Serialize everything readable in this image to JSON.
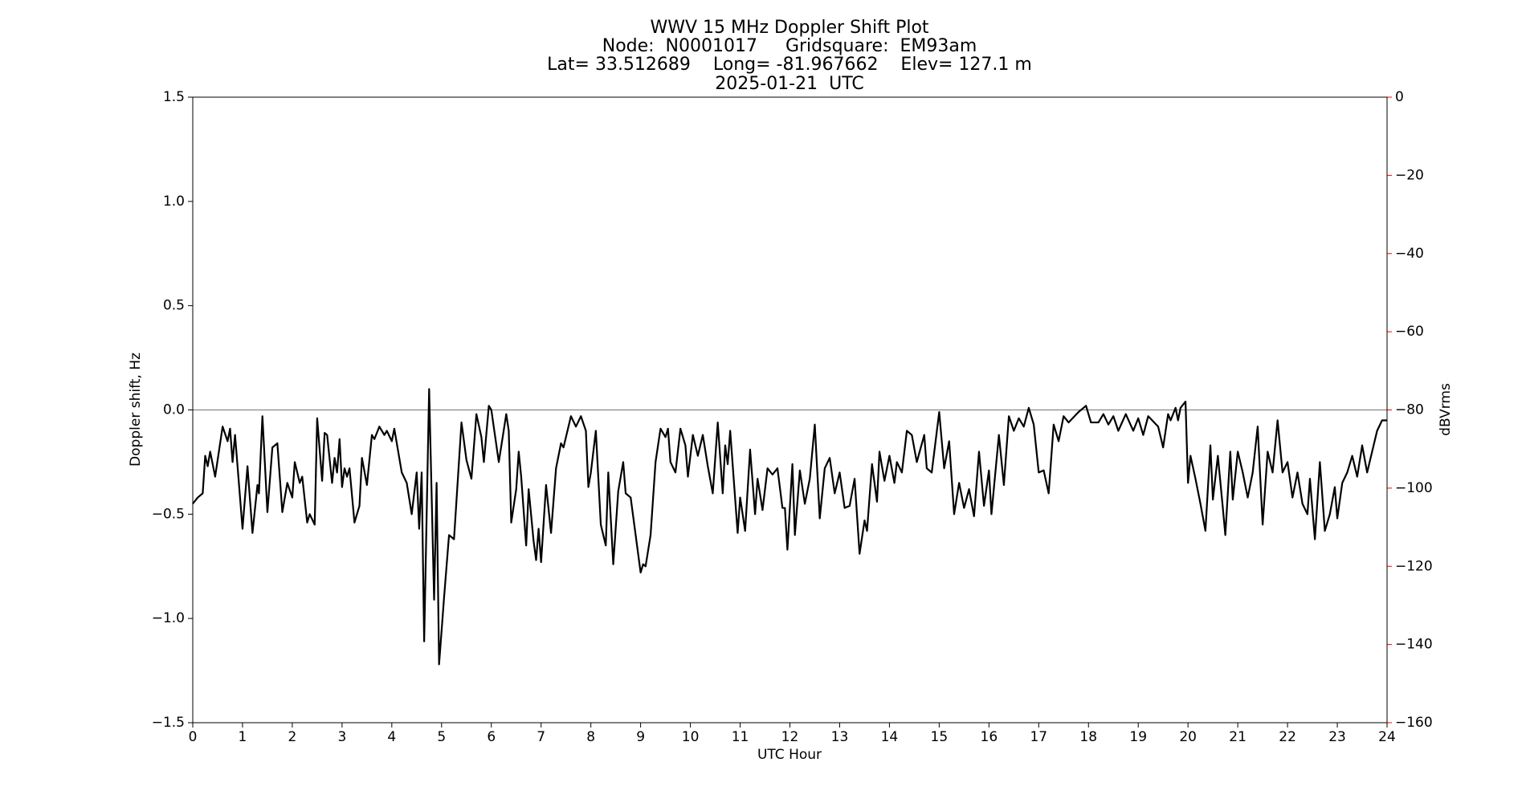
{
  "chart_data": {
    "type": "line",
    "title": "WWV 15 MHz Doppler Shift Plot",
    "subtitle_lines": [
      "Node:  N0001017     Gridsquare:  EM93am",
      "Lat= 33.512689    Long= -81.967662    Elev= 127.1 m",
      "2025-01-21  UTC"
    ],
    "x_label": "UTC Hour",
    "y_label": "Doppler shift, Hz",
    "y2_label": "dBVrms",
    "color": "#000000",
    "y2_color": "#ff0000",
    "reference_line": 0,
    "reference_line_color": "#888888",
    "xlim": [
      0,
      24
    ],
    "xticks": [
      0,
      1,
      2,
      3,
      4,
      5,
      6,
      7,
      8,
      9,
      10,
      11,
      12,
      13,
      14,
      15,
      16,
      17,
      18,
      19,
      20,
      21,
      22,
      23,
      24
    ],
    "ylim": [
      -1.5,
      1.5
    ],
    "yticks": [
      {
        "value": -1.5,
        "label": "−1.5"
      },
      {
        "value": -1,
        "label": "−1.0"
      },
      {
        "value": -0.5,
        "label": "−0.5"
      },
      {
        "value": 0,
        "label": "0.0"
      },
      {
        "value": 0.5,
        "label": "0.5"
      },
      {
        "value": 1,
        "label": "1.0"
      },
      {
        "value": 1.5,
        "label": "1.5"
      }
    ],
    "y2lim": [
      -160,
      0
    ],
    "y2ticks": [
      {
        "value": -160,
        "label": "−160"
      },
      {
        "value": -140,
        "label": "−140"
      },
      {
        "value": -120,
        "label": "−120"
      },
      {
        "value": -100,
        "label": "−100"
      },
      {
        "value": -80,
        "label": "−80"
      },
      {
        "value": -60,
        "label": "−60"
      },
      {
        "value": -40,
        "label": "−40"
      },
      {
        "value": -20,
        "label": "−20"
      },
      0
    ],
    "x": [
      0,
      0.1,
      0.2,
      0.25,
      0.3,
      0.35,
      0.45,
      0.6,
      0.7,
      0.75,
      0.8,
      0.85,
      1,
      1.1,
      1.2,
      1.3,
      1.33,
      1.4,
      1.5,
      1.6,
      1.7,
      1.8,
      1.9,
      2,
      2.05,
      2.15,
      2.2,
      2.3,
      2.35,
      2.45,
      2.5,
      2.6,
      2.65,
      2.7,
      2.8,
      2.85,
      2.9,
      2.95,
      3,
      3.05,
      3.1,
      3.15,
      3.25,
      3.35,
      3.4,
      3.5,
      3.6,
      3.65,
      3.75,
      3.85,
      3.9,
      4,
      4.05,
      4.2,
      4.3,
      4.4,
      4.5,
      4.55,
      4.6,
      4.65,
      4.75,
      4.85,
      4.9,
      4.95,
      5.05,
      5.15,
      5.25,
      5.4,
      5.5,
      5.6,
      5.7,
      5.8,
      5.85,
      5.95,
      6,
      6.15,
      6.3,
      6.35,
      6.4,
      6.5,
      6.55,
      6.6,
      6.7,
      6.75,
      6.85,
      6.9,
      6.95,
      7,
      7.1,
      7.2,
      7.3,
      7.4,
      7.45,
      7.6,
      7.7,
      7.8,
      7.9,
      7.95,
      8,
      8.1,
      8.2,
      8.3,
      8.35,
      8.45,
      8.55,
      8.65,
      8.7,
      8.8,
      8.9,
      9,
      9.05,
      9.1,
      9.2,
      9.3,
      9.4,
      9.5,
      9.55,
      9.6,
      9.7,
      9.8,
      9.9,
      9.95,
      10.05,
      10.15,
      10.25,
      10.35,
      10.45,
      10.55,
      10.65,
      10.7,
      10.75,
      10.8,
      10.95,
      11,
      11.1,
      11.2,
      11.3,
      11.35,
      11.45,
      11.55,
      11.65,
      11.75,
      11.85,
      11.9,
      11.95,
      12.05,
      12.1,
      12.2,
      12.3,
      12.4,
      12.5,
      12.6,
      12.7,
      12.8,
      12.9,
      13,
      13.1,
      13.2,
      13.3,
      13.4,
      13.5,
      13.55,
      13.65,
      13.75,
      13.8,
      13.9,
      14,
      14.1,
      14.15,
      14.25,
      14.35,
      14.45,
      14.55,
      14.7,
      14.75,
      14.85,
      15,
      15.1,
      15.2,
      15.3,
      15.4,
      15.5,
      15.6,
      15.7,
      15.8,
      15.9,
      16,
      16.05,
      16.2,
      16.3,
      16.4,
      16.5,
      16.6,
      16.7,
      16.8,
      16.9,
      17,
      17.1,
      17.2,
      17.3,
      17.4,
      17.5,
      17.6,
      17.8,
      17.95,
      18.05,
      18.2,
      18.3,
      18.4,
      18.5,
      18.6,
      18.75,
      18.9,
      19,
      19.1,
      19.2,
      19.4,
      19.5,
      19.6,
      19.65,
      19.75,
      19.8,
      19.85,
      19.95,
      20,
      20.05,
      20.15,
      20.25,
      20.35,
      20.45,
      20.5,
      20.6,
      20.7,
      20.75,
      20.85,
      20.9,
      21,
      21.1,
      21.2,
      21.3,
      21.4,
      21.5,
      21.6,
      21.7,
      21.8,
      21.9,
      22,
      22.1,
      22.2,
      22.3,
      22.4,
      22.45,
      22.55,
      22.65,
      22.75,
      22.85,
      22.95,
      23,
      23.1,
      23.2,
      23.3,
      23.4,
      23.5,
      23.6,
      23.7,
      23.8,
      23.9,
      24
    ],
    "values": [
      -0.45,
      -0.42,
      -0.4,
      -0.22,
      -0.27,
      -0.2,
      -0.32,
      -0.08,
      -0.15,
      -0.09,
      -0.25,
      -0.12,
      -0.57,
      -0.27,
      -0.59,
      -0.36,
      -0.4,
      -0.03,
      -0.49,
      -0.18,
      -0.16,
      -0.49,
      -0.35,
      -0.42,
      -0.25,
      -0.35,
      -0.32,
      -0.54,
      -0.5,
      -0.55,
      -0.04,
      -0.34,
      -0.11,
      -0.12,
      -0.35,
      -0.23,
      -0.3,
      -0.14,
      -0.37,
      -0.28,
      -0.32,
      -0.28,
      -0.54,
      -0.46,
      -0.23,
      -0.36,
      -0.12,
      -0.14,
      -0.08,
      -0.12,
      -0.1,
      -0.15,
      -0.09,
      -0.3,
      -0.35,
      -0.5,
      -0.3,
      -0.57,
      -0.3,
      -1.11,
      0.1,
      -0.91,
      -0.35,
      -1.22,
      -0.9,
      -0.6,
      -0.62,
      -0.06,
      -0.24,
      -0.33,
      -0.02,
      -0.13,
      -0.25,
      0.02,
      0,
      -0.25,
      -0.02,
      -0.1,
      -0.54,
      -0.38,
      -0.2,
      -0.32,
      -0.65,
      -0.38,
      -0.63,
      -0.72,
      -0.57,
      -0.73,
      -0.36,
      -0.59,
      -0.28,
      -0.16,
      -0.18,
      -0.03,
      -0.08,
      -0.03,
      -0.1,
      -0.37,
      -0.3,
      -0.1,
      -0.55,
      -0.65,
      -0.3,
      -0.74,
      -0.39,
      -0.25,
      -0.4,
      -0.42,
      -0.6,
      -0.78,
      -0.74,
      -0.75,
      -0.6,
      -0.25,
      -0.09,
      -0.13,
      -0.09,
      -0.25,
      -0.3,
      -0.09,
      -0.17,
      -0.32,
      -0.12,
      -0.22,
      -0.12,
      -0.27,
      -0.4,
      -0.06,
      -0.4,
      -0.17,
      -0.26,
      -0.1,
      -0.59,
      -0.42,
      -0.58,
      -0.19,
      -0.5,
      -0.33,
      -0.48,
      -0.28,
      -0.31,
      -0.28,
      -0.47,
      -0.47,
      -0.67,
      -0.26,
      -0.6,
      -0.29,
      -0.45,
      -0.33,
      -0.07,
      -0.52,
      -0.28,
      -0.23,
      -0.4,
      -0.3,
      -0.47,
      -0.46,
      -0.33,
      -0.69,
      -0.53,
      -0.58,
      -0.26,
      -0.44,
      -0.2,
      -0.34,
      -0.22,
      -0.35,
      -0.25,
      -0.3,
      -0.1,
      -0.12,
      -0.25,
      -0.12,
      -0.28,
      -0.3,
      -0.01,
      -0.28,
      -0.15,
      -0.5,
      -0.35,
      -0.47,
      -0.38,
      -0.51,
      -0.2,
      -0.46,
      -0.29,
      -0.5,
      -0.12,
      -0.36,
      -0.03,
      -0.1,
      -0.04,
      -0.08,
      0.01,
      -0.07,
      -0.3,
      -0.29,
      -0.4,
      -0.07,
      -0.15,
      -0.03,
      -0.06,
      -0.01,
      0.02,
      -0.06,
      -0.06,
      -0.02,
      -0.07,
      -0.03,
      -0.1,
      -0.02,
      -0.1,
      -0.04,
      -0.12,
      -0.03,
      -0.08,
      -0.18,
      -0.02,
      -0.05,
      0.01,
      -0.05,
      0.01,
      0.04,
      -0.35,
      -0.22,
      -0.33,
      -0.45,
      -0.58,
      -0.17,
      -0.43,
      -0.22,
      -0.47,
      -0.6,
      -0.2,
      -0.43,
      -0.2,
      -0.3,
      -0.42,
      -0.3,
      -0.08,
      -0.55,
      -0.2,
      -0.3,
      -0.05,
      -0.3,
      -0.25,
      -0.42,
      -0.3,
      -0.45,
      -0.5,
      -0.33,
      -0.62,
      -0.25,
      -0.58,
      -0.5,
      -0.37,
      -0.52,
      -0.35,
      -0.3,
      -0.22,
      -0.32,
      -0.17,
      -0.3,
      -0.2,
      -0.1,
      -0.05,
      -0.05
    ]
  }
}
